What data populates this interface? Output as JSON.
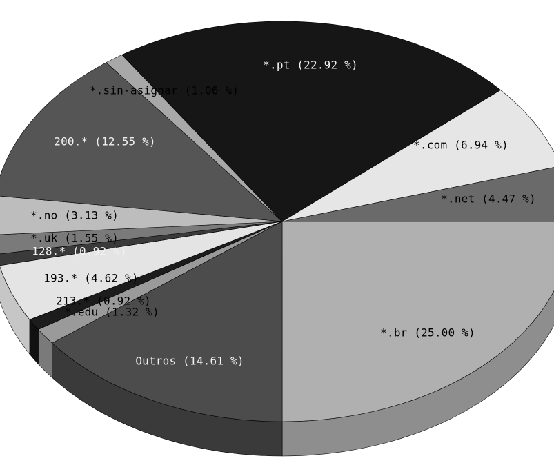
{
  "chart_data": {
    "type": "pie",
    "style": "3d-tilted",
    "start_angle_deg": 0,
    "direction": "clockwise",
    "slices": [
      {
        "label": "*.br",
        "value": 25.0,
        "display": "*.br (25.00 %)",
        "color": "#b0b0b0",
        "side_color": "#8e8e8e",
        "text_color": "#000000"
      },
      {
        "label": "Outros",
        "value": 14.61,
        "display": "Outros (14.61 %)",
        "color": "#4c4c4c",
        "side_color": "#3a3a3a",
        "text_color": "#f2f2f2"
      },
      {
        "label": "*.edu",
        "value": 1.32,
        "display": "*.edu (1.32 %)",
        "color": "#9a9a9a",
        "side_color": "#7a7a7a",
        "text_color": "#000000"
      },
      {
        "label": "213.*",
        "value": 0.92,
        "display": "213.* (0.92 %)",
        "color": "#1c1c1c",
        "side_color": "#111111",
        "text_color": "#000000"
      },
      {
        "label": "193.*",
        "value": 4.62,
        "display": "193.* (4.62 %)",
        "color": "#e4e4e4",
        "side_color": "#c6c6c6",
        "text_color": "#000000"
      },
      {
        "label": "128.*",
        "value": 0.92,
        "display": "128.* (0.92 %)",
        "color": "#3a3a3a",
        "side_color": "#2a2a2a",
        "text_color": "#f2f2f2"
      },
      {
        "label": "*.uk",
        "value": 1.55,
        "display": "*.uk (1.55 %)",
        "color": "#7a7a7a",
        "side_color": "#5e5e5e",
        "text_color": "#000000"
      },
      {
        "label": "*.no",
        "value": 3.13,
        "display": "*.no (3.13 %)",
        "color": "#bdbdbd",
        "side_color": "#9a9a9a",
        "text_color": "#000000"
      },
      {
        "label": "200.*",
        "value": 12.55,
        "display": "200.* (12.55 %)",
        "color": "#555555",
        "side_color": "#404040",
        "text_color": "#f2f2f2"
      },
      {
        "label": "*.sin-asignar",
        "value": 1.06,
        "display": "*.sin-asignar (1.06 %)",
        "color": "#a8a8a8",
        "side_color": "#888888",
        "text_color": "#000000"
      },
      {
        "label": "*.pt",
        "value": 22.92,
        "display": "*.pt (22.92 %)",
        "color": "#161616",
        "side_color": "#0c0c0c",
        "text_color": "#f2f2f2"
      },
      {
        "label": "*.com",
        "value": 6.94,
        "display": "*.com (6.94 %)",
        "color": "#e6e6e6",
        "side_color": "#c4c4c4",
        "text_color": "#000000"
      },
      {
        "label": "*.net",
        "value": 4.47,
        "display": "*.net (4.47 %)",
        "color": "#6a6a6a",
        "side_color": "#505050",
        "text_color": "#000000"
      }
    ]
  }
}
